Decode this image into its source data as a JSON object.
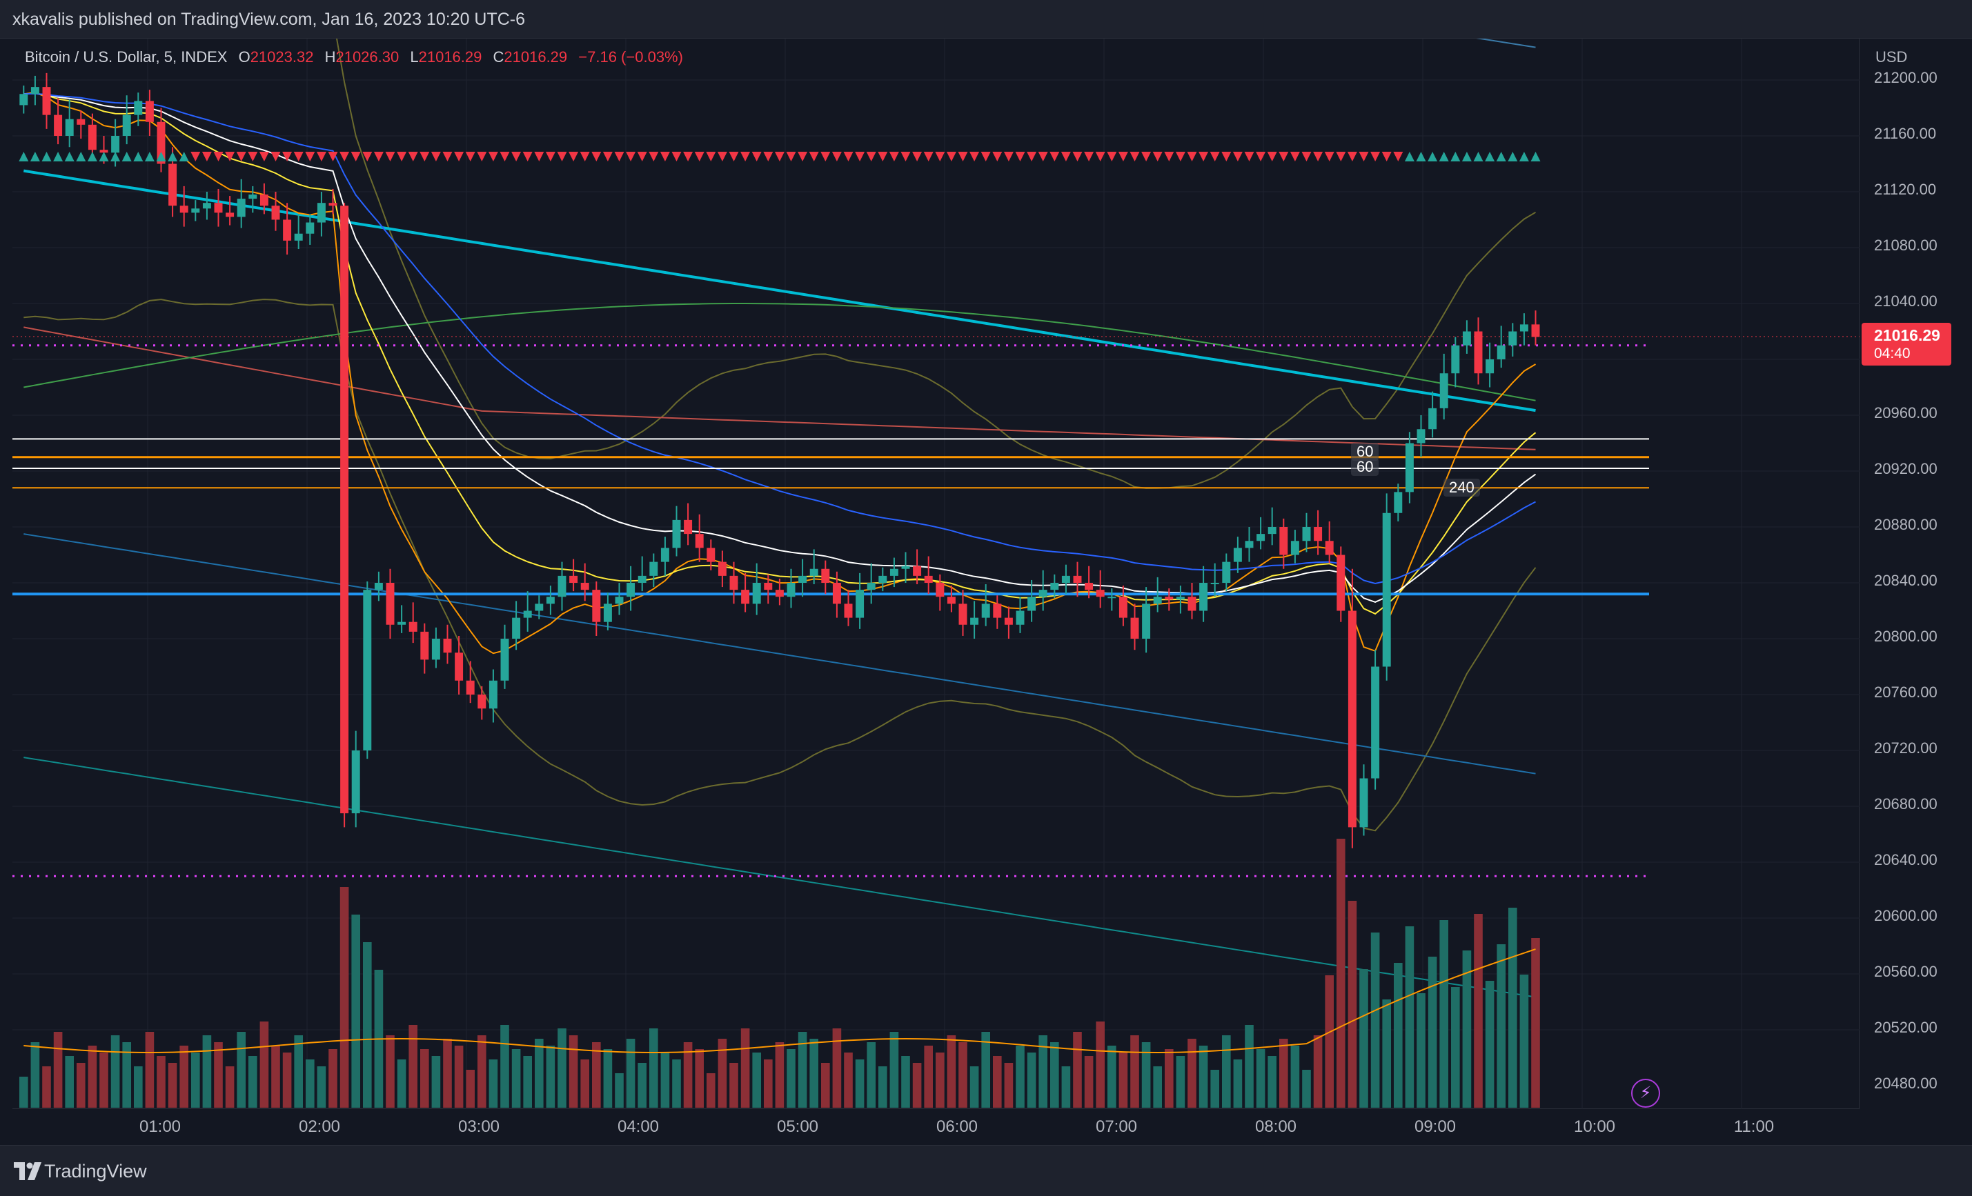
{
  "header": {
    "published": "xkavalis published on TradingView.com, Jan 16, 2023 10:20 UTC-6"
  },
  "legend": {
    "symbol": "Bitcoin / U.S. Dollar, 5, INDEX",
    "open_key": "O",
    "open": "21023.32",
    "high_key": "H",
    "high": "21026.30",
    "low_key": "L",
    "low": "21016.29",
    "close_key": "C",
    "close": "21016.29",
    "change": "−7.16 (−0.03%)"
  },
  "price_axis": {
    "currency": "USD",
    "ticks": [
      "21200.00",
      "21160.00",
      "21120.00",
      "21080.00",
      "21040.00",
      "20960.00",
      "20920.00",
      "20880.00",
      "20840.00",
      "20800.00",
      "20760.00",
      "20720.00",
      "20680.00",
      "20640.00",
      "20600.00",
      "20560.00",
      "20520.00",
      "20480.00"
    ],
    "last_price": "21016.29",
    "countdown": "04:40"
  },
  "time_axis": {
    "ticks": [
      "01:00",
      "02:00",
      "03:00",
      "04:00",
      "05:00",
      "06:00",
      "07:00",
      "08:00",
      "09:00",
      "10:00",
      "11:00"
    ]
  },
  "level_labels": [
    "60",
    "60",
    "240"
  ],
  "footer": {
    "brand": "TradingView"
  },
  "colors": {
    "bull": "#26a69a",
    "bear": "#f23645",
    "vwap": "#00bcd4",
    "ema_white": "#ffffff",
    "ema_yellow": "#ffeb3b",
    "ema_orange": "#ff9800",
    "level_blue": "#2196f3",
    "dotted_magenta": "#e040fb"
  },
  "chart_data": {
    "type": "candlestick",
    "symbol": "Bitcoin / U.S. Dollar",
    "interval": "5",
    "y_range": [
      20460,
      21230
    ],
    "horizontal_levels": [
      20943,
      20930,
      20922,
      20908,
      20832
    ],
    "dotted_levels": [
      21010,
      20630
    ],
    "closes": [
      21190,
      21195,
      21175,
      21160,
      21172,
      21168,
      21150,
      21148,
      21160,
      21175,
      21185,
      21170,
      21140,
      21110,
      21105,
      21108,
      21112,
      21105,
      21102,
      21115,
      21118,
      21110,
      21100,
      21085,
      21090,
      21098,
      21112,
      21110,
      20675,
      20720,
      20835,
      20840,
      20810,
      20812,
      20805,
      20785,
      20800,
      20790,
      20770,
      20760,
      20750,
      20770,
      20800,
      20815,
      20820,
      20825,
      20830,
      20845,
      20840,
      20835,
      20812,
      20825,
      20830,
      20840,
      20845,
      20855,
      20865,
      20885,
      20875,
      20865,
      20855,
      20845,
      20835,
      20825,
      20840,
      20835,
      20830,
      20840,
      20845,
      20850,
      20840,
      20825,
      20815,
      20835,
      20840,
      20845,
      20850,
      20852,
      20845,
      20840,
      20830,
      20825,
      20810,
      20815,
      20825,
      20815,
      20810,
      20820,
      20830,
      20835,
      20840,
      20845,
      20840,
      20835,
      20830,
      20830,
      20815,
      20800,
      20825,
      20830,
      20828,
      20830,
      20820,
      20840,
      20840,
      20855,
      20865,
      20870,
      20875,
      20880,
      20860,
      20870,
      20880,
      20870,
      20860,
      20820,
      20665,
      20700,
      20780,
      20890,
      20905,
      20940,
      20950,
      20965,
      20990,
      21010,
      21020,
      20990,
      21000,
      21010,
      21020,
      21025,
      21016
    ]
  }
}
